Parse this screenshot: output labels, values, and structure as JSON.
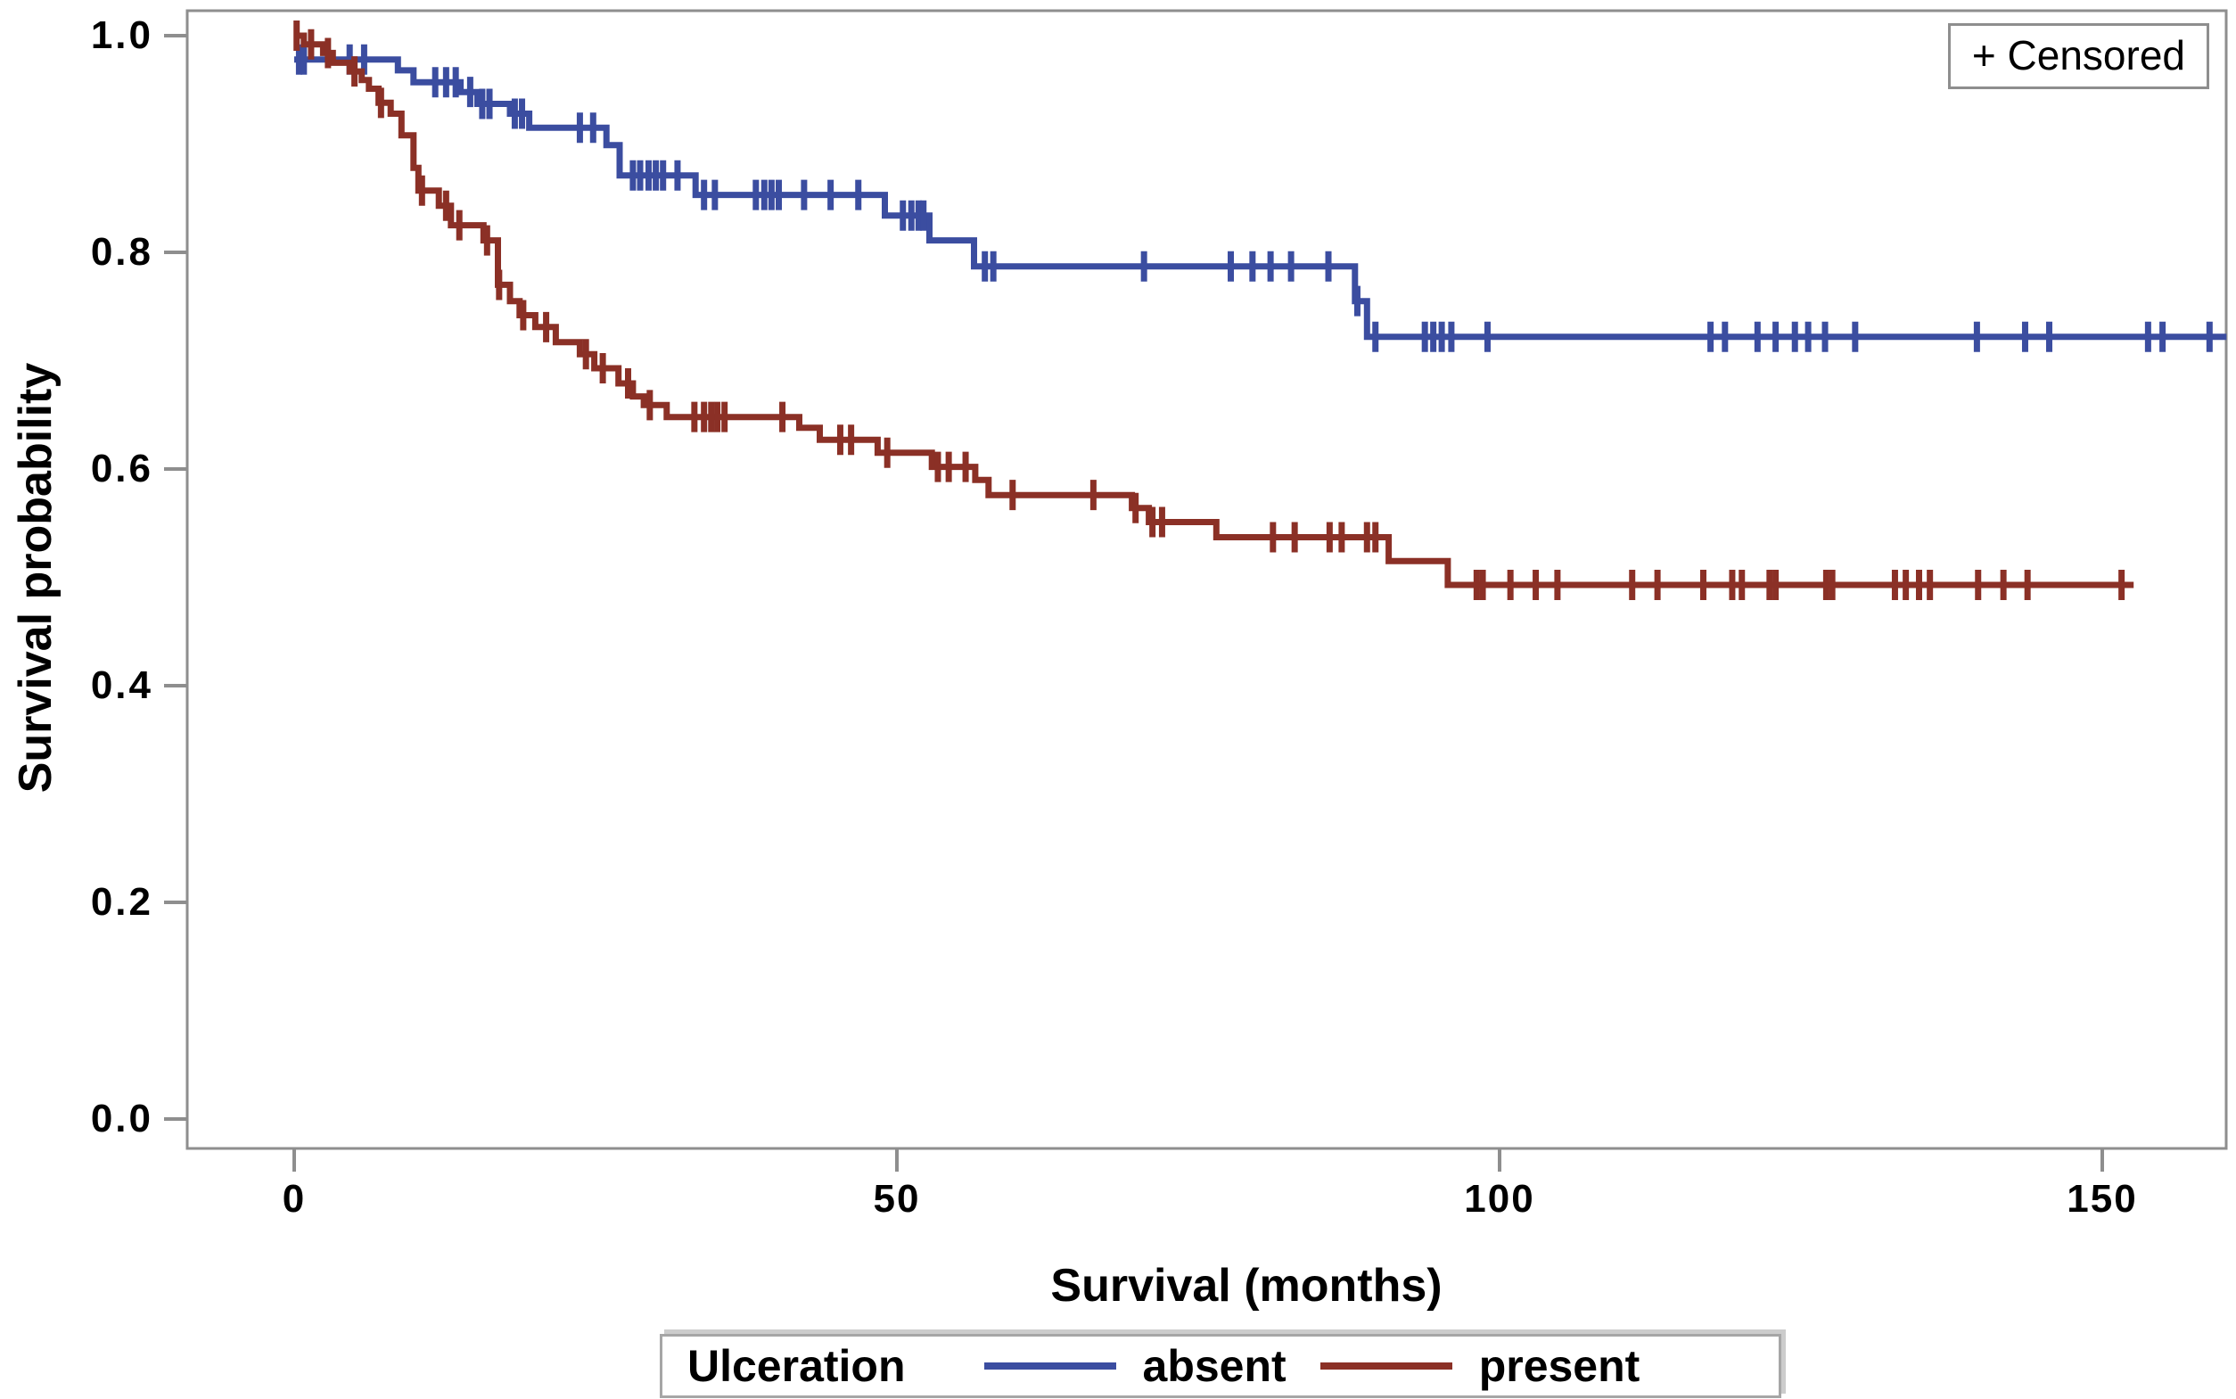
{
  "censored_box": {
    "label": "+ Censored"
  },
  "legend": {
    "title": "Ulceration",
    "series": [
      {
        "label": "absent",
        "color": "#3b4da0"
      },
      {
        "label": "present",
        "color": "#8b3026"
      }
    ]
  },
  "chart_data": {
    "type": "line",
    "subtype": "kaplan-meier-step-curves",
    "title": "",
    "xlabel": "Survival (months)",
    "ylabel": "Survival probability",
    "xlim": [
      -9,
      160.5
    ],
    "ylim": [
      0,
      1.02
    ],
    "grid": false,
    "legend_position": "bottom",
    "censored_marker": "+",
    "frame_color": "#8e8e8e",
    "tick_color": "#8e8e8e",
    "xticks": [
      "0",
      "50",
      "100",
      "150"
    ],
    "yticks": [
      "1.0",
      "0.8",
      "0.6",
      "0.4",
      "0.2",
      "0.0"
    ],
    "series": [
      {
        "name": "absent",
        "color": "#3b4da0",
        "start": [
          0,
          0.978
        ],
        "steps": [
          [
            8.6,
            0.968
          ],
          [
            9.9,
            0.957
          ],
          [
            13.8,
            0.948
          ],
          [
            15.2,
            0.937
          ],
          [
            17.9,
            0.928
          ],
          [
            19.5,
            0.915
          ],
          [
            25.9,
            0.899
          ],
          [
            27.0,
            0.871
          ],
          [
            33.3,
            0.853
          ],
          [
            49.0,
            0.834
          ],
          [
            52.7,
            0.811
          ],
          [
            56.4,
            0.787
          ],
          [
            88.0,
            0.755
          ],
          [
            89.0,
            0.722
          ]
        ],
        "end": 160.3,
        "censor_times": [
          0.4,
          0.8,
          4.6,
          5.8,
          11.7,
          12.6,
          13.4,
          14.6,
          15.6,
          16.2,
          18.3,
          18.9,
          23.7,
          24.8,
          28.1,
          28.7,
          29.4,
          30.0,
          30.6,
          31.8,
          34.0,
          34.9,
          38.3,
          39.0,
          39.6,
          40.2,
          42.3,
          44.5,
          46.8,
          50.5,
          51.2,
          51.8,
          52.2,
          57.3,
          58.0,
          70.5,
          77.7,
          79.5,
          81.0,
          82.7,
          85.8,
          88.2,
          89.7,
          93.8,
          94.5,
          95.2,
          96.0,
          99.0,
          117.5,
          118.7,
          121.4,
          122.9,
          124.5,
          125.6,
          127.0,
          129.5,
          139.6,
          143.6,
          145.6,
          153.8,
          155.0,
          158.9
        ]
      },
      {
        "name": "present",
        "color": "#8b3026",
        "start": [
          0,
          1.0
        ],
        "steps": [
          [
            0.8,
            0.992
          ],
          [
            2.4,
            0.984
          ],
          [
            3.2,
            0.975
          ],
          [
            4.6,
            0.967
          ],
          [
            5.6,
            0.959
          ],
          [
            6.2,
            0.951
          ],
          [
            7.0,
            0.938
          ],
          [
            8.0,
            0.928
          ],
          [
            8.9,
            0.908
          ],
          [
            9.9,
            0.878
          ],
          [
            10.3,
            0.857
          ],
          [
            12.0,
            0.843
          ],
          [
            13.0,
            0.825
          ],
          [
            15.7,
            0.811
          ],
          [
            16.9,
            0.77
          ],
          [
            17.9,
            0.755
          ],
          [
            18.7,
            0.742
          ],
          [
            20.0,
            0.731
          ],
          [
            21.7,
            0.717
          ],
          [
            23.7,
            0.706
          ],
          [
            24.9,
            0.693
          ],
          [
            26.9,
            0.679
          ],
          [
            28.1,
            0.667
          ],
          [
            29.0,
            0.659
          ],
          [
            30.9,
            0.648
          ],
          [
            41.9,
            0.638
          ],
          [
            43.6,
            0.627
          ],
          [
            48.4,
            0.615
          ],
          [
            52.9,
            0.602
          ],
          [
            56.5,
            0.59
          ],
          [
            57.6,
            0.576
          ],
          [
            69.5,
            0.564
          ],
          [
            70.9,
            0.551
          ],
          [
            76.5,
            0.537
          ],
          [
            90.8,
            0.515
          ],
          [
            95.7,
            0.493
          ]
        ],
        "end": 152.6,
        "censor_times": [
          0.2,
          1.4,
          2.8,
          5.0,
          7.2,
          10.6,
          12.6,
          13.7,
          16.0,
          17.0,
          19.0,
          20.9,
          24.2,
          25.6,
          27.7,
          29.5,
          33.2,
          34.0,
          34.6,
          35.1,
          35.7,
          40.5,
          45.3,
          46.2,
          49.2,
          53.4,
          54.3,
          55.7,
          59.6,
          66.3,
          69.8,
          71.2,
          72.0,
          81.2,
          83.0,
          85.9,
          86.9,
          89.0,
          89.7,
          98.1,
          98.6,
          100.9,
          103.0,
          104.8,
          111.0,
          113.1,
          116.9,
          119.3,
          120.1,
          122.4,
          122.9,
          127.1,
          127.6,
          132.8,
          133.7,
          134.8,
          135.7,
          139.7,
          141.8,
          143.8,
          151.6
        ]
      }
    ]
  }
}
